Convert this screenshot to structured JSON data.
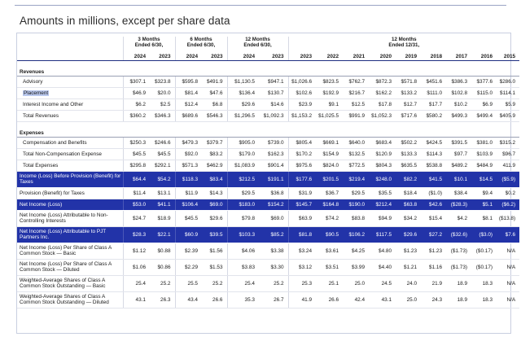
{
  "heading": "Amounts in millions, except per share data",
  "groups": [
    {
      "label_1": "3 Months",
      "label_2": "Ended 6/30,"
    },
    {
      "label_1": "6 Months",
      "label_2": "Ended 6/30,"
    },
    {
      "label_1": "12 Months",
      "label_2": "Ended 6/30,"
    },
    {
      "label_1": "12 Months",
      "label_2": "Ended 12/31,"
    }
  ],
  "years": [
    "2024",
    "2023",
    "2024",
    "2023",
    "2024",
    "2023",
    "2023",
    "2022",
    "2021",
    "2020",
    "2019",
    "2018",
    "2017",
    "2016",
    "2015"
  ],
  "sections": {
    "revenues": "Revenues",
    "expenses": "Expenses"
  },
  "rows": [
    {
      "label": "Advisory",
      "values": [
        "$307.1",
        "$323.8",
        "$595.8",
        "$491.9",
        "$1,130.5",
        "$947.1",
        "$1,026.6",
        "$823.5",
        "$762.7",
        "$872.3",
        "$571.8",
        "$451.6",
        "$386.3",
        "$377.6",
        "$286.0"
      ]
    },
    {
      "label": "Placement",
      "values": [
        "$46.9",
        "$20.0",
        "$81.4",
        "$47.6",
        "$136.4",
        "$130.7",
        "$102.6",
        "$192.9",
        "$216.7",
        "$162.2",
        "$133.2",
        "$111.0",
        "$102.8",
        "$115.0",
        "$114.1"
      ]
    },
    {
      "label": "Interest Income and Other",
      "values": [
        "$6.2",
        "$2.5",
        "$12.4",
        "$6.8",
        "$29.6",
        "$14.6",
        "$23.9",
        "$9.1",
        "$12.5",
        "$17.8",
        "$12.7",
        "$17.7",
        "$10.2",
        "$6.9",
        "$5.9"
      ]
    },
    {
      "label": "Total Revenues",
      "values": [
        "$360.2",
        "$346.3",
        "$689.6",
        "$546.3",
        "$1,296.5",
        "$1,092.3",
        "$1,153.2",
        "$1,025.5",
        "$991.9",
        "$1,052.3",
        "$717.6",
        "$580.2",
        "$499.3",
        "$499.4",
        "$405.9"
      ]
    },
    {
      "label": "Compensation and Benefits",
      "values": [
        "$250.3",
        "$246.6",
        "$479.3",
        "$379.7",
        "$905.0",
        "$739.0",
        "$805.4",
        "$669.1",
        "$640.0",
        "$683.4",
        "$502.2",
        "$424.5",
        "$391.5",
        "$381.0",
        "$315.2"
      ]
    },
    {
      "label": "Total Non-Compensation Expense",
      "values": [
        "$45.5",
        "$45.5",
        "$92.0",
        "$83.2",
        "$179.0",
        "$162.3",
        "$170.2",
        "$154.9",
        "$132.5",
        "$120.9",
        "$133.3",
        "$114.3",
        "$97.7",
        "$103.9",
        "$96.7"
      ]
    },
    {
      "label": "Total Expenses",
      "values": [
        "$295.8",
        "$292.1",
        "$571.3",
        "$462.9",
        "$1,083.9",
        "$901.4",
        "$975.6",
        "$824.0",
        "$772.5",
        "$804.3",
        "$635.5",
        "$538.8",
        "$489.2",
        "$484.9",
        "411.9"
      ]
    },
    {
      "label": "Income (Loss) Before Provision (Benefit) for Taxes",
      "values": [
        "$64.4",
        "$54.2",
        "$118.3",
        "$83.4",
        "$212.5",
        "$191.1",
        "$177.6",
        "$201.5",
        "$219.4",
        "$248.0",
        "$82.2",
        "$41.5",
        "$10.1",
        "$14.5",
        "($5.9)"
      ]
    },
    {
      "label": "Provision (Benefit) for Taxes",
      "values": [
        "$11.4",
        "$13.1",
        "$11.9",
        "$14.3",
        "$29.5",
        "$36.8",
        "$31.9",
        "$36.7",
        "$29.5",
        "$35.5",
        "$18.4",
        "($1.0)",
        "$38.4",
        "$9.4",
        "$0.2"
      ]
    },
    {
      "label": "Net Income (Loss)",
      "values": [
        "$53.0",
        "$41.1",
        "$106.4",
        "$69.0",
        "$183.0",
        "$154.2",
        "$145.7",
        "$164.8",
        "$190.0",
        "$212.4",
        "$63.8",
        "$42.6",
        "($28.3)",
        "$5.1",
        "($6.2)"
      ]
    },
    {
      "label": "Net Income (Loss) Attributable to Non-Controlling Interests",
      "values": [
        "$24.7",
        "$18.9",
        "$45.5",
        "$29.6",
        "$79.8",
        "$69.0",
        "$63.9",
        "$74.2",
        "$83.8",
        "$94.9",
        "$34.2",
        "$15.4",
        "$4.2",
        "$8.1",
        "($13.8)"
      ]
    },
    {
      "label": "Net Income (Loss) Attributable to PJT Partners Inc.",
      "values": [
        "$28.3",
        "$22.1",
        "$60.9",
        "$39.5",
        "$103.3",
        "$85.2",
        "$81.8",
        "$90.5",
        "$106.2",
        "$117.5",
        "$29.6",
        "$27.2",
        "($32.6)",
        "($3.0)",
        "$7.6"
      ]
    },
    {
      "label": "Net Income (Loss) Per Share of Class A Common Stock — Basic",
      "values": [
        "$1.12",
        "$0.88",
        "$2.39",
        "$1.56",
        "$4.06",
        "$3.38",
        "$3.24",
        "$3.61",
        "$4.25",
        "$4.80",
        "$1.23",
        "$1.23",
        "($1.73)",
        "($0.17)",
        "N/A"
      ]
    },
    {
      "label": "Net Income (Loss) Per Share of Class A Common Stock — Diluted",
      "values": [
        "$1.06",
        "$0.86",
        "$2.29",
        "$1.53",
        "$3.83",
        "$3.30",
        "$3.12",
        "$3.51",
        "$3.99",
        "$4.40",
        "$1.21",
        "$1.16",
        "($1.73)",
        "($0.17)",
        "N/A"
      ]
    },
    {
      "label": "Weighted-Average Shares of Class A Common Stock Outstanding — Basic",
      "values": [
        "25.4",
        "25.2",
        "25.5",
        "25.2",
        "25.4",
        "25.2",
        "25.3",
        "25.1",
        "25.0",
        "24.5",
        "24.0",
        "21.9",
        "18.9",
        "18.3",
        "N/A"
      ]
    },
    {
      "label": "Weighted-Average Shares of Class A Common Stock Outstanding — Diluted",
      "values": [
        "43.1",
        "26.3",
        "43.4",
        "26.6",
        "35.3",
        "26.7",
        "41.9",
        "26.6",
        "42.4",
        "43.1",
        "25.0",
        "24.3",
        "18.9",
        "18.3",
        "N/A"
      ]
    }
  ]
}
